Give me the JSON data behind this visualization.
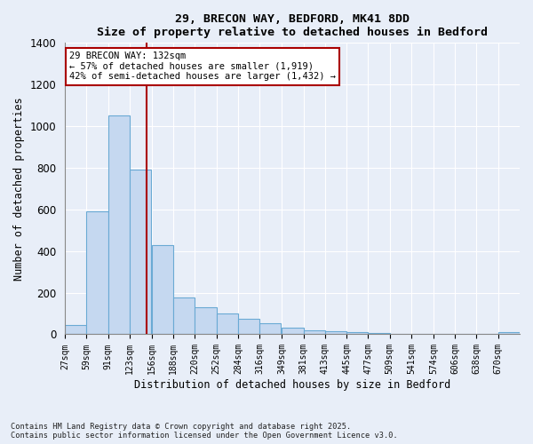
{
  "title_line1": "29, BRECON WAY, BEDFORD, MK41 8DD",
  "title_line2": "Size of property relative to detached houses in Bedford",
  "xlabel": "Distribution of detached houses by size in Bedford",
  "ylabel": "Number of detached properties",
  "bar_color": "#c5d8f0",
  "bar_edge_color": "#6aaad4",
  "background_color": "#e8eef8",
  "grid_color": "#ffffff",
  "categories": [
    "27sqm",
    "59sqm",
    "91sqm",
    "123sqm",
    "156sqm",
    "188sqm",
    "220sqm",
    "252sqm",
    "284sqm",
    "316sqm",
    "349sqm",
    "381sqm",
    "413sqm",
    "445sqm",
    "477sqm",
    "509sqm",
    "541sqm",
    "574sqm",
    "606sqm",
    "638sqm",
    "670sqm"
  ],
  "bar_heights": [
    45,
    590,
    1050,
    790,
    430,
    175,
    130,
    100,
    75,
    55,
    30,
    20,
    15,
    12,
    5,
    3,
    2,
    1,
    0,
    0,
    10
  ],
  "bin_width": 32,
  "bin_starts": [
    11,
    43,
    75,
    107,
    140,
    172,
    204,
    236,
    268,
    300,
    333,
    365,
    397,
    429,
    461,
    493,
    525,
    558,
    590,
    622,
    654
  ],
  "xlim_left": 11,
  "xlim_right": 686,
  "marker_x": 132,
  "annotation_text": "29 BRECON WAY: 132sqm\n← 57% of detached houses are smaller (1,919)\n42% of semi-detached houses are larger (1,432) →",
  "annotation_box_color": "#aa0000",
  "ylim": [
    0,
    1400
  ],
  "yticks": [
    0,
    200,
    400,
    600,
    800,
    1000,
    1200,
    1400
  ],
  "footer_line1": "Contains HM Land Registry data © Crown copyright and database right 2025.",
  "footer_line2": "Contains public sector information licensed under the Open Government Licence v3.0."
}
